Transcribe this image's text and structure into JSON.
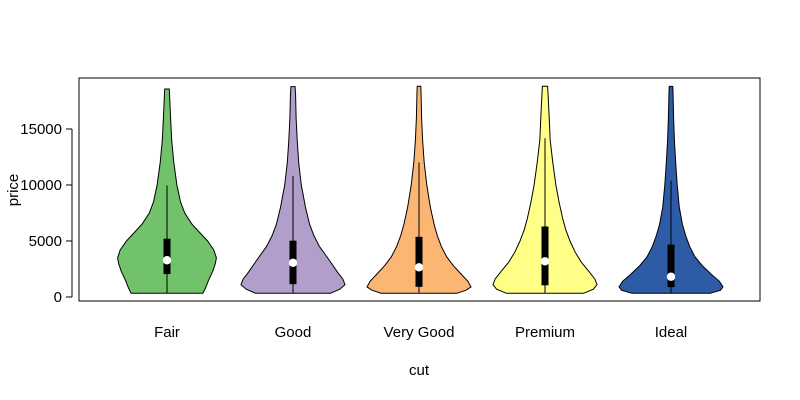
{
  "chart_data": {
    "type": "violin",
    "title": "",
    "xlabel": "cut",
    "ylabel": "price",
    "ylim": [
      -300,
      19000
    ],
    "yticks": [
      0,
      5000,
      10000,
      15000
    ],
    "ytick_labels": [
      "0",
      "5000",
      "10000",
      "15000"
    ],
    "categories": [
      "Fair",
      "Good",
      "Very Good",
      "Premium",
      "Ideal"
    ],
    "colors": [
      "#72C26C",
      "#B19ECB",
      "#FBB674",
      "#FFFF88",
      "#2E5BA6"
    ],
    "grid": false,
    "legend": "none",
    "violins": [
      {
        "name": "Fair",
        "min": 337,
        "max": 18574,
        "q1": 2050,
        "median": 3282,
        "q3": 5206,
        "whisker_low": 337,
        "whisker_high": 9950,
        "density": [
          [
            337,
            0.69
          ],
          [
            800,
            0.74
          ],
          [
            1500,
            0.8
          ],
          [
            2300,
            0.88
          ],
          [
            3000,
            0.93
          ],
          [
            3500,
            0.95
          ],
          [
            4200,
            0.9
          ],
          [
            5000,
            0.78
          ],
          [
            5800,
            0.62
          ],
          [
            6500,
            0.48
          ],
          [
            7500,
            0.34
          ],
          [
            8500,
            0.26
          ],
          [
            10000,
            0.19
          ],
          [
            12000,
            0.13
          ],
          [
            14000,
            0.09
          ],
          [
            16000,
            0.07
          ],
          [
            18000,
            0.05
          ],
          [
            18574,
            0.045
          ]
        ]
      },
      {
        "name": "Good",
        "min": 327,
        "max": 18788,
        "q1": 1145,
        "median": 3050,
        "q3": 5028,
        "whisker_low": 327,
        "whisker_high": 10810,
        "density": [
          [
            327,
            0.72
          ],
          [
            700,
            0.9
          ],
          [
            1100,
            1.0
          ],
          [
            1600,
            0.96
          ],
          [
            2200,
            0.86
          ],
          [
            3000,
            0.74
          ],
          [
            3800,
            0.62
          ],
          [
            4500,
            0.51
          ],
          [
            5500,
            0.4
          ],
          [
            6500,
            0.32
          ],
          [
            8000,
            0.24
          ],
          [
            10000,
            0.16
          ],
          [
            12000,
            0.11
          ],
          [
            14000,
            0.08
          ],
          [
            16000,
            0.06
          ],
          [
            18000,
            0.05
          ],
          [
            18788,
            0.04
          ]
        ]
      },
      {
        "name": "Very Good",
        "min": 336,
        "max": 18818,
        "q1": 912,
        "median": 2648,
        "q3": 5373,
        "whisker_low": 336,
        "whisker_high": 12020,
        "density": [
          [
            336,
            0.73
          ],
          [
            600,
            0.9
          ],
          [
            900,
            1.0
          ],
          [
            1400,
            0.94
          ],
          [
            2000,
            0.82
          ],
          [
            2800,
            0.66
          ],
          [
            3600,
            0.53
          ],
          [
            4500,
            0.43
          ],
          [
            5500,
            0.35
          ],
          [
            6500,
            0.29
          ],
          [
            8000,
            0.22
          ],
          [
            10000,
            0.15
          ],
          [
            12000,
            0.1
          ],
          [
            14000,
            0.07
          ],
          [
            16000,
            0.05
          ],
          [
            18000,
            0.04
          ],
          [
            18818,
            0.035
          ]
        ]
      },
      {
        "name": "Premium",
        "min": 326,
        "max": 18823,
        "q1": 1046,
        "median": 3185,
        "q3": 6296,
        "whisker_low": 326,
        "whisker_high": 14171,
        "density": [
          [
            326,
            0.74
          ],
          [
            700,
            0.93
          ],
          [
            1100,
            1.0
          ],
          [
            1600,
            0.96
          ],
          [
            2300,
            0.84
          ],
          [
            3100,
            0.7
          ],
          [
            4000,
            0.58
          ],
          [
            5000,
            0.48
          ],
          [
            6000,
            0.4
          ],
          [
            7000,
            0.34
          ],
          [
            8500,
            0.27
          ],
          [
            10000,
            0.21
          ],
          [
            12000,
            0.15
          ],
          [
            14000,
            0.1
          ],
          [
            16000,
            0.08
          ],
          [
            18000,
            0.06
          ],
          [
            18823,
            0.05
          ]
        ]
      },
      {
        "name": "Ideal",
        "min": 326,
        "max": 18806,
        "q1": 878,
        "median": 1810,
        "q3": 4678,
        "whisker_low": 326,
        "whisker_high": 10380,
        "density": [
          [
            326,
            0.75
          ],
          [
            600,
            0.95
          ],
          [
            900,
            1.0
          ],
          [
            1400,
            0.93
          ],
          [
            2000,
            0.78
          ],
          [
            2800,
            0.6
          ],
          [
            3600,
            0.46
          ],
          [
            4500,
            0.36
          ],
          [
            5500,
            0.28
          ],
          [
            6500,
            0.22
          ],
          [
            8000,
            0.16
          ],
          [
            10000,
            0.12
          ],
          [
            12000,
            0.09
          ],
          [
            14000,
            0.065
          ],
          [
            16000,
            0.05
          ],
          [
            18000,
            0.04
          ],
          [
            18806,
            0.035
          ]
        ]
      }
    ]
  }
}
